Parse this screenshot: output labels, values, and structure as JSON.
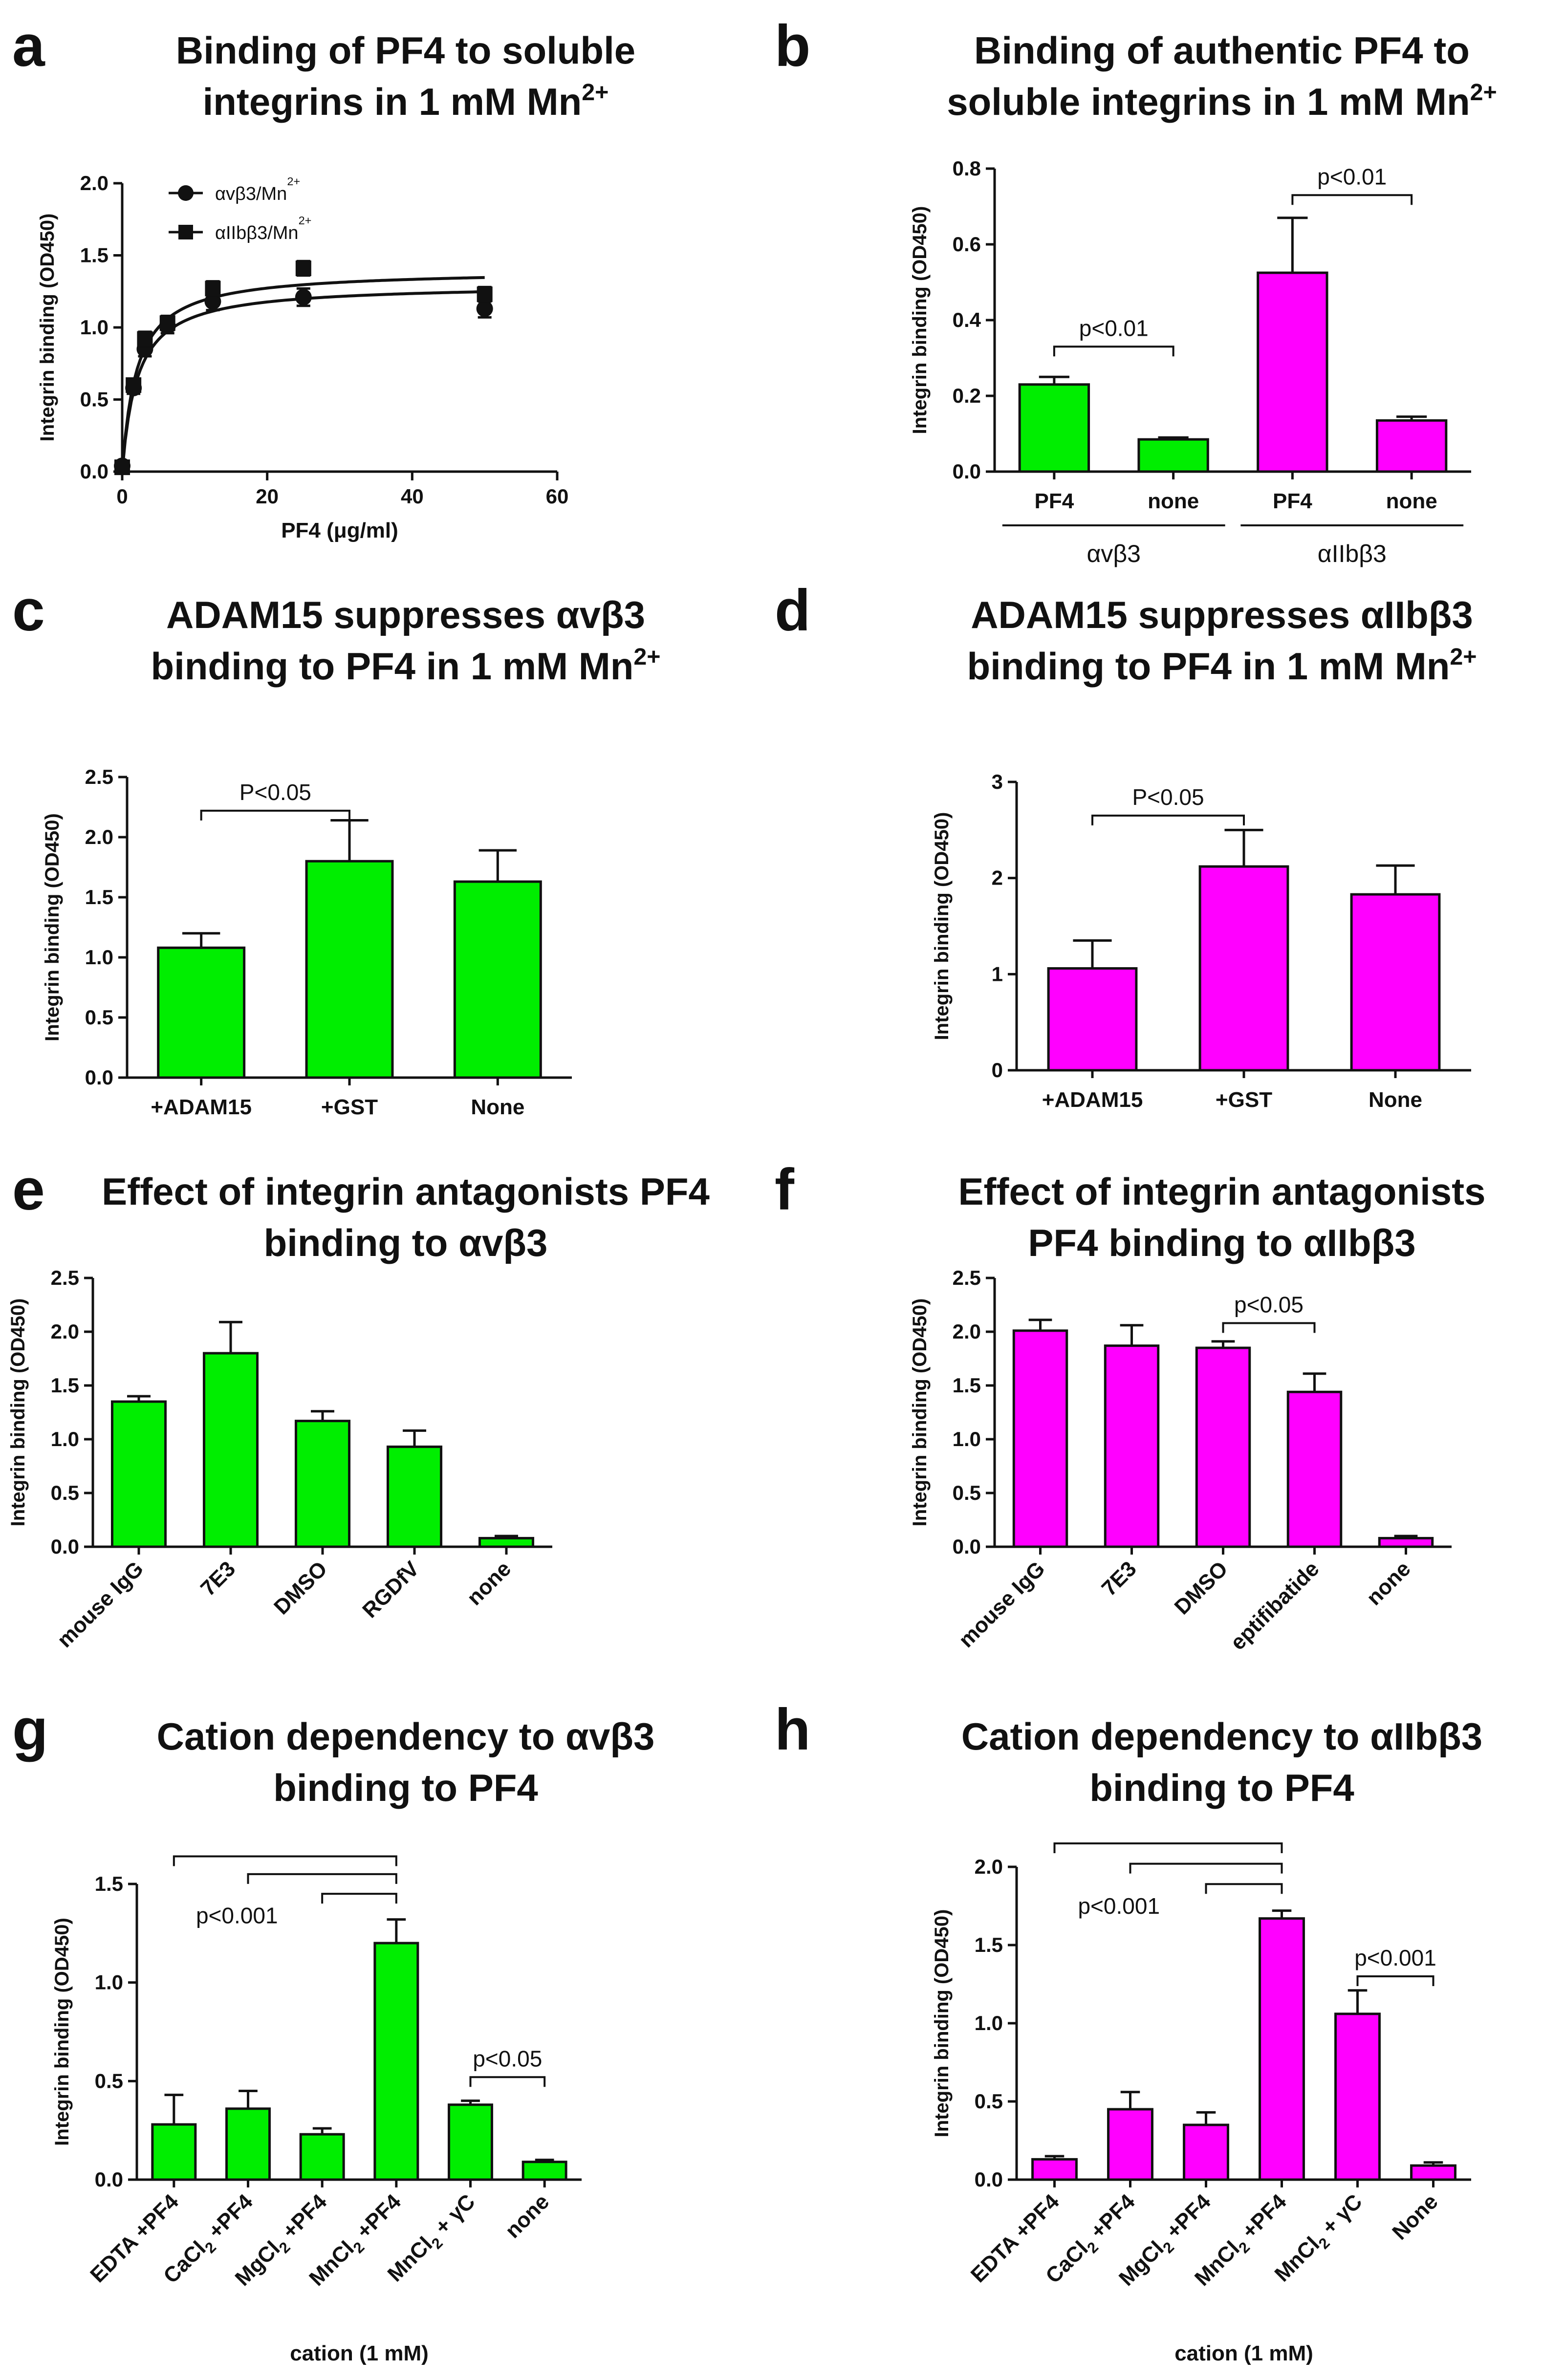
{
  "colors": {
    "green": "#00ee00",
    "magenta": "#ff00ff",
    "ink": "#111111"
  },
  "panels": {
    "a": {
      "letter": "a",
      "title": [
        "Binding of PF4 to soluble",
        "integrins in 1 mM Mn2+"
      ]
    },
    "b": {
      "letter": "b",
      "title": [
        "Binding of authentic PF4 to",
        "soluble integrins in 1 mM Mn2+"
      ]
    },
    "c": {
      "letter": "c",
      "title": [
        "ADAM15 suppresses αvβ3",
        "binding to PF4 in 1 mM Mn2+"
      ]
    },
    "d": {
      "letter": "d",
      "title": [
        "ADAM15 suppresses αIIbβ3",
        "binding to PF4 in 1 mM Mn2+"
      ]
    },
    "e": {
      "letter": "e",
      "title": [
        "Effect of integrin antagonists PF4",
        "binding to αvβ3"
      ]
    },
    "f": {
      "letter": "f",
      "title": [
        "Effect of integrin antagonists",
        "PF4 binding to αIIbβ3"
      ]
    },
    "g": {
      "letter": "g",
      "title": [
        "Cation dependency to αvβ3",
        "binding to PF4"
      ]
    },
    "h": {
      "letter": "h",
      "title": [
        "Cation dependency to αIIbβ3",
        "binding to PF4"
      ]
    }
  },
  "chart_data": [
    {
      "id": "a",
      "type": "scatter",
      "xlabel": "PF4 (μg/ml)",
      "ylabel": "Integrin binding (OD450)",
      "xlim": [
        0,
        60
      ],
      "ylim": [
        0,
        2.0
      ],
      "xticks": [
        0,
        20,
        40,
        60
      ],
      "yticks": [
        0.0,
        0.5,
        1.0,
        1.5,
        2.0
      ],
      "ydecimals": 1,
      "legend": "top-left",
      "series": [
        {
          "name": "αvβ3/Mn2+",
          "marker": "circle",
          "x": [
            0,
            1.56,
            3.13,
            6.25,
            12.5,
            25,
            50
          ],
          "y": [
            0.04,
            0.58,
            0.85,
            1.01,
            1.18,
            1.21,
            1.13
          ],
          "err": [
            0.02,
            0.04,
            0.05,
            0.05,
            0.06,
            0.06,
            0.06
          ],
          "fit": {
            "bmax": 1.3,
            "kd": 2.1
          }
        },
        {
          "name": "αIIbβ3/Mn2+",
          "marker": "square",
          "x": [
            0,
            1.56,
            3.13,
            6.25,
            12.5,
            25,
            50
          ],
          "y": [
            0.03,
            0.6,
            0.92,
            1.03,
            1.27,
            1.41,
            1.23
          ],
          "err": [
            0.02,
            0.04,
            0.05,
            0.05,
            0.05,
            0.05,
            0.05
          ],
          "fit": {
            "bmax": 1.4,
            "kd": 2.0
          }
        }
      ]
    },
    {
      "id": "b",
      "type": "bar",
      "ylabel": "Integrin binding (OD450)",
      "ylim": [
        0,
        0.8
      ],
      "yticks": [
        0.0,
        0.2,
        0.4,
        0.6,
        0.8
      ],
      "ydecimals": 1,
      "categories": [
        "PF4",
        "none",
        "PF4",
        "none"
      ],
      "values": [
        0.23,
        0.085,
        0.525,
        0.135
      ],
      "errors": [
        0.02,
        0.005,
        0.145,
        0.01
      ],
      "colors": [
        "#00ee00",
        "#00ee00",
        "#ff00ff",
        "#ff00ff"
      ],
      "groups": [
        {
          "label": "αvβ3",
          "from": 0,
          "to": 1
        },
        {
          "label": "αIIbβ3",
          "from": 2,
          "to": 3
        }
      ],
      "annotations": [
        {
          "text": "p<0.01",
          "from": 0,
          "to": 1,
          "y": 0.33
        },
        {
          "text": "p<0.01",
          "from": 2,
          "to": 3,
          "y": 0.73
        }
      ]
    },
    {
      "id": "c",
      "type": "bar",
      "ylabel": "Integrin binding (OD450)",
      "ylim": [
        0,
        2.5
      ],
      "yticks": [
        0.0,
        0.5,
        1.0,
        1.5,
        2.0,
        2.5
      ],
      "ydecimals": 1,
      "categories": [
        "+ADAM15",
        "+GST",
        "None"
      ],
      "values": [
        1.08,
        1.8,
        1.63
      ],
      "errors": [
        0.12,
        0.34,
        0.26
      ],
      "color": "#00ee00",
      "annotations": [
        {
          "text": "P<0.05",
          "from": 0,
          "to": 1,
          "y": 2.22
        }
      ]
    },
    {
      "id": "d",
      "type": "bar",
      "ylabel": "Integrin binding (OD450)",
      "ylim": [
        0,
        3
      ],
      "yticks": [
        0,
        1,
        2,
        3
      ],
      "ydecimals": 0,
      "categories": [
        "+ADAM15",
        "+GST",
        "None"
      ],
      "values": [
        1.06,
        2.12,
        1.83
      ],
      "errors": [
        0.29,
        0.38,
        0.3
      ],
      "color": "#ff00ff",
      "annotations": [
        {
          "text": "P<0.05",
          "from": 0,
          "to": 1,
          "y": 2.65
        }
      ]
    },
    {
      "id": "e",
      "type": "bar",
      "ylabel": "Integrin binding (OD450)",
      "ylim": [
        0,
        2.5
      ],
      "yticks": [
        0.0,
        0.5,
        1.0,
        1.5,
        2.0,
        2.5
      ],
      "ydecimals": 1,
      "categories": [
        "mouse IgG",
        "7E3",
        "DMSO",
        "RGDfV",
        "none"
      ],
      "values": [
        1.35,
        1.8,
        1.17,
        0.93,
        0.08
      ],
      "errors": [
        0.05,
        0.29,
        0.09,
        0.15,
        0.02
      ],
      "color": "#00ee00",
      "rotate": true,
      "annotations": []
    },
    {
      "id": "f",
      "type": "bar",
      "ylabel": "Integrin binding (OD450)",
      "ylim": [
        0,
        2.5
      ],
      "yticks": [
        0.0,
        0.5,
        1.0,
        1.5,
        2.0,
        2.5
      ],
      "ydecimals": 1,
      "categories": [
        "mouse IgG",
        "7E3",
        "DMSO",
        "eptifibatide",
        "none"
      ],
      "values": [
        2.01,
        1.87,
        1.85,
        1.44,
        0.08
      ],
      "errors": [
        0.1,
        0.19,
        0.06,
        0.17,
        0.02
      ],
      "color": "#ff00ff",
      "rotate": true,
      "annotations": [
        {
          "text": "p<0.05",
          "from": 2,
          "to": 3,
          "y": 2.08
        }
      ]
    },
    {
      "id": "g",
      "type": "bar",
      "ylabel": "Integrin binding (OD450)",
      "xlabel": "cation (1 mM)",
      "ylim": [
        0,
        1.5
      ],
      "yticks": [
        0.0,
        0.5,
        1.0,
        1.5
      ],
      "ydecimals": 1,
      "categories": [
        "EDTA +PF4",
        "CaCl2 +PF4",
        "MgCl2 +PF4",
        "MnCl2 +PF4",
        "MnCl2 + γC",
        "none"
      ],
      "values": [
        0.28,
        0.36,
        0.23,
        1.2,
        0.38,
        0.09
      ],
      "errors": [
        0.15,
        0.09,
        0.03,
        0.12,
        0.02,
        0.01
      ],
      "color": "#00ee00",
      "rotate": true,
      "annotations": [
        {
          "text": "",
          "from": 0,
          "to": 3,
          "y": 1.64
        },
        {
          "text": "",
          "from": 1,
          "to": 3,
          "y": 1.55
        },
        {
          "text": "p<0.001",
          "from": 2,
          "to": 3,
          "y": 1.45,
          "labelX": 0.85,
          "labelY": 1.3
        },
        {
          "text": "p<0.05",
          "from": 4,
          "to": 5,
          "y": 0.52
        }
      ]
    },
    {
      "id": "h",
      "type": "bar",
      "ylabel": "Integrin binding (OD450)",
      "xlabel": "cation (1 mM)",
      "ylim": [
        0,
        2.0
      ],
      "yticks": [
        0.0,
        0.5,
        1.0,
        1.5,
        2.0
      ],
      "ydecimals": 1,
      "categories": [
        "EDTA +PF4",
        "CaCl2 +PF4",
        "MgCl2 +PF4",
        "MnCl2 +PF4",
        "MnCl2 + γC",
        "None"
      ],
      "values": [
        0.13,
        0.45,
        0.35,
        1.67,
        1.06,
        0.09
      ],
      "errors": [
        0.02,
        0.11,
        0.08,
        0.05,
        0.15,
        0.02
      ],
      "color": "#ff00ff",
      "rotate": true,
      "annotations": [
        {
          "text": "",
          "from": 0,
          "to": 3,
          "y": 2.15
        },
        {
          "text": "",
          "from": 1,
          "to": 3,
          "y": 2.02
        },
        {
          "text": "p<0.001",
          "from": 2,
          "to": 3,
          "y": 1.89,
          "labelX": 0.85,
          "labelY": 1.7
        },
        {
          "text": "p<0.001",
          "from": 4,
          "to": 5,
          "y": 1.3
        }
      ]
    }
  ]
}
